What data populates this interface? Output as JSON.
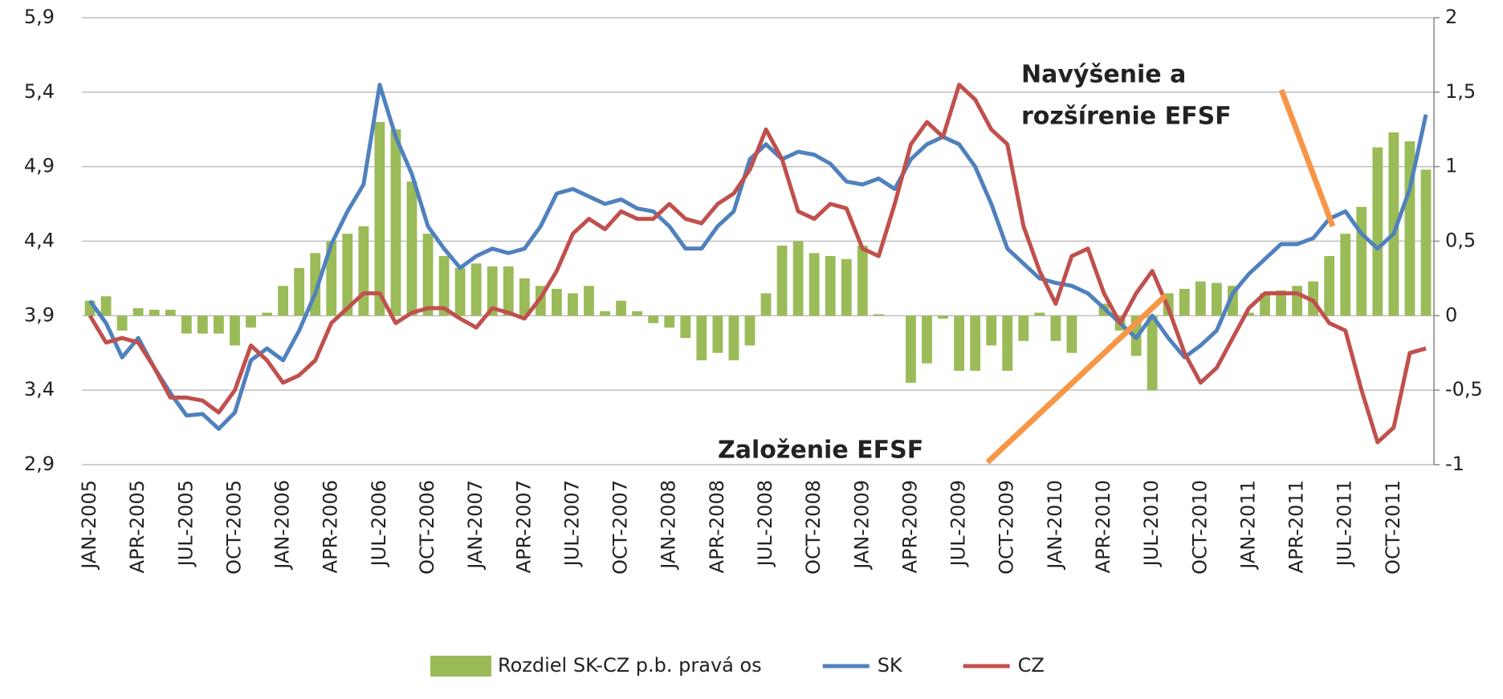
{
  "chart_data": {
    "type": "combo",
    "categories": [
      "JAN-2005",
      null,
      null,
      "APR-2005",
      null,
      null,
      "JUL-2005",
      null,
      null,
      "OCT-2005",
      null,
      null,
      "JAN-2006",
      null,
      null,
      "APR-2006",
      null,
      null,
      "JUL-2006",
      null,
      null,
      "OCT-2006",
      null,
      null,
      "JAN-2007",
      null,
      null,
      "APR-2007",
      null,
      null,
      "JUL-2007",
      null,
      null,
      "OCT-2007",
      null,
      null,
      "JAN-2008",
      null,
      null,
      "APR-2008",
      null,
      null,
      "JUL-2008",
      null,
      null,
      "OCT-2008",
      null,
      null,
      "JAN-2009",
      null,
      null,
      "APR-2009",
      null,
      null,
      "JUL-2009",
      null,
      null,
      "OCT-2009",
      null,
      null,
      "JAN-2010",
      null,
      null,
      "APR-2010",
      null,
      null,
      "JUL-2010",
      null,
      null,
      "OCT-2010",
      null,
      null,
      "JAN-2011",
      null,
      null,
      "APR-2011",
      null,
      null,
      "JUL-2011",
      null,
      null,
      "OCT-2011",
      null,
      null
    ],
    "series": [
      {
        "name": "Rozdiel SK-CZ p.b. pravá os",
        "type": "bar",
        "axis": "y2",
        "color": "#9bbb59",
        "values": [
          0.1,
          0.13,
          -0.1,
          0.05,
          0.04,
          0.04,
          -0.12,
          -0.12,
          -0.12,
          -0.2,
          -0.08,
          0.02,
          0.2,
          0.32,
          0.42,
          0.5,
          0.55,
          0.6,
          1.3,
          1.25,
          0.9,
          0.55,
          0.4,
          0.32,
          0.35,
          0.33,
          0.33,
          0.25,
          0.2,
          0.18,
          0.15,
          0.2,
          0.03,
          0.1,
          0.03,
          -0.05,
          -0.08,
          -0.15,
          -0.3,
          -0.25,
          -0.3,
          -0.2,
          0.15,
          0.47,
          0.5,
          0.42,
          0.4,
          0.38,
          0.47,
          0.01,
          0,
          -0.45,
          -0.32,
          -0.02,
          -0.37,
          -0.37,
          -0.2,
          -0.37,
          -0.17,
          0.02,
          -0.17,
          -0.25,
          0,
          0.08,
          -0.1,
          -0.27,
          -0.5,
          0.15,
          0.18,
          0.23,
          0.22,
          0.2,
          0.02,
          0.15,
          0.17,
          0.2,
          0.23,
          0.4,
          0.55,
          0.73,
          1.13,
          1.23,
          1.17,
          0.98
        ]
      },
      {
        "name": "SK",
        "type": "line",
        "color": "#4f81bd",
        "values": [
          4.0,
          3.85,
          3.62,
          3.75,
          3.55,
          3.38,
          3.23,
          3.24,
          3.14,
          3.25,
          3.6,
          3.68,
          3.6,
          3.8,
          4.05,
          4.38,
          4.6,
          4.78,
          5.45,
          5.1,
          4.85,
          4.5,
          4.35,
          4.22,
          4.3,
          4.35,
          4.32,
          4.35,
          4.5,
          4.72,
          4.75,
          4.7,
          4.65,
          4.68,
          4.62,
          4.6,
          4.5,
          4.35,
          4.35,
          4.5,
          4.6,
          4.95,
          5.05,
          4.95,
          5.0,
          4.98,
          4.92,
          4.8,
          4.78,
          4.82,
          4.75,
          4.95,
          5.05,
          5.1,
          5.05,
          4.9,
          4.65,
          4.35,
          4.25,
          4.15,
          4.12,
          4.1,
          4.05,
          3.95,
          3.85,
          3.75,
          3.9,
          3.75,
          3.62,
          3.7,
          3.8,
          4.05,
          4.18,
          4.28,
          4.38,
          4.38,
          4.42,
          4.55,
          4.6,
          4.45,
          4.35,
          4.45,
          4.75,
          5.25
        ]
      },
      {
        "name": "CZ",
        "type": "line",
        "color": "#c0504d",
        "values": [
          3.9,
          3.72,
          3.75,
          3.72,
          3.55,
          3.35,
          3.35,
          3.33,
          3.25,
          3.4,
          3.7,
          3.6,
          3.45,
          3.5,
          3.6,
          3.85,
          3.95,
          4.05,
          4.05,
          3.85,
          3.92,
          3.95,
          3.95,
          3.88,
          3.82,
          3.95,
          3.92,
          3.88,
          4.02,
          4.2,
          4.45,
          4.55,
          4.48,
          4.6,
          4.55,
          4.55,
          4.65,
          4.55,
          4.52,
          4.65,
          4.72,
          4.88,
          5.15,
          4.95,
          4.6,
          4.55,
          4.65,
          4.62,
          4.35,
          4.3,
          4.65,
          5.05,
          5.2,
          5.1,
          5.45,
          5.35,
          5.15,
          5.05,
          4.5,
          4.2,
          3.98,
          4.3,
          4.35,
          4.05,
          3.85,
          4.05,
          4.2,
          3.95,
          3.65,
          3.45,
          3.55,
          3.75,
          3.95,
          4.05,
          4.05,
          4.05,
          4.0,
          3.85,
          3.8,
          3.4,
          3.05,
          3.15,
          3.65,
          3.68
        ]
      }
    ],
    "ylim": [
      2.9,
      5.9
    ],
    "yticks": [
      {
        "value": 2.9,
        "label": "2,9"
      },
      {
        "value": 3.4,
        "label": "3,4"
      },
      {
        "value": 3.9,
        "label": "3,9"
      },
      {
        "value": 4.4,
        "label": "4,4"
      },
      {
        "value": 4.9,
        "label": "4,9"
      },
      {
        "value": 5.4,
        "label": "5,4"
      },
      {
        "value": 5.9,
        "label": "5,9"
      }
    ],
    "y2lim": [
      -1,
      2
    ],
    "y2ticks": [
      -1,
      {
        "value": -0.5,
        "label": "-0,5"
      },
      0,
      {
        "value": 0.5,
        "label": "0,5"
      },
      1,
      {
        "value": 1.5,
        "label": "1,5"
      },
      2
    ],
    "grid": true,
    "legend": "bottom",
    "annotations": [
      {
        "text": [
          "Navýšenie a",
          "rozšírenie EFSF"
        ],
        "color": "#f79646"
      },
      {
        "text": [
          "Založenie EFSF"
        ],
        "color": "#f79646"
      }
    ]
  }
}
